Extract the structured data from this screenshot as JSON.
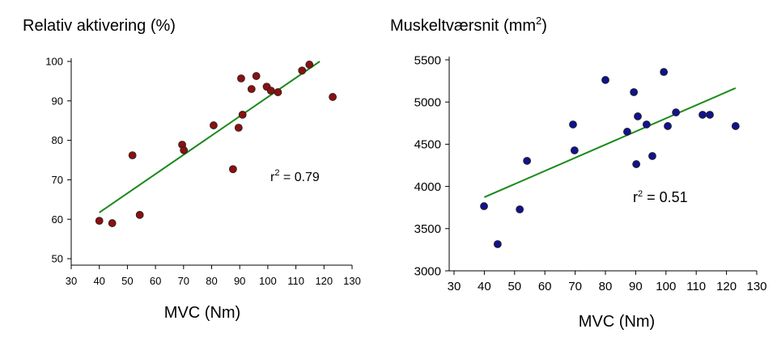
{
  "chart_data": [
    {
      "type": "scatter",
      "title": "Relativ aktivering (%)",
      "x_label": "MVC (Nm)",
      "xlim": [
        30,
        130
      ],
      "xticks": [
        30,
        40,
        50,
        60,
        70,
        80,
        90,
        100,
        110,
        120,
        130
      ],
      "ylim": [
        50,
        100
      ],
      "yticks": [
        50,
        60,
        70,
        80,
        90,
        100
      ],
      "color": "#8b1010",
      "x": [
        40.0,
        44.6,
        51.8,
        54.4,
        69.5,
        70.1,
        80.7,
        87.6,
        89.6,
        90.5,
        91.0,
        94.2,
        95.9,
        99.6,
        101.1,
        103.6,
        112.2,
        114.8,
        123.1
      ],
      "y": [
        59.6,
        59.0,
        76.2,
        61.1,
        78.9,
        77.5,
        83.8,
        72.7,
        83.2,
        95.7,
        86.5,
        93.0,
        96.3,
        93.6,
        92.6,
        92.2,
        97.7,
        99.2,
        91.0
      ],
      "trendline": {
        "x": [
          40,
          118.5
        ],
        "y": [
          61.7,
          100
        ],
        "color": "#1a8a1a"
      },
      "annotation": {
        "base": "r",
        "sup": "2",
        "rest": " = 0.79"
      }
    },
    {
      "type": "scatter",
      "title": "Muskeltværsnit (mm",
      "title_sup": "2",
      "title_end": ")",
      "x_label": "MVC (Nm)",
      "xlim": [
        30,
        130
      ],
      "xticks": [
        30,
        40,
        50,
        60,
        70,
        80,
        90,
        100,
        110,
        120,
        130
      ],
      "ylim": [
        3000,
        5500
      ],
      "yticks": [
        3000,
        3500,
        4000,
        4500,
        5000,
        5500
      ],
      "color": "#12128b",
      "x": [
        39.9,
        44.4,
        51.7,
        54.1,
        69.3,
        69.8,
        80.0,
        87.2,
        89.4,
        90.7,
        90.2,
        93.6,
        95.5,
        99.3,
        100.6,
        103.3,
        112.1,
        114.5,
        123.0
      ],
      "y": [
        3766,
        3316,
        3728,
        4303,
        4734,
        4427,
        5261,
        4648,
        5117,
        4830,
        4264,
        4734,
        4360,
        5356,
        4715,
        4877,
        4849,
        4849,
        4715
      ],
      "trendline": {
        "x": [
          40,
          123
        ],
        "y": [
          3872,
          5165
        ],
        "color": "#1a8a1a"
      },
      "annotation": {
        "base": "r",
        "sup": "2",
        "rest": " = 0.51"
      }
    }
  ]
}
